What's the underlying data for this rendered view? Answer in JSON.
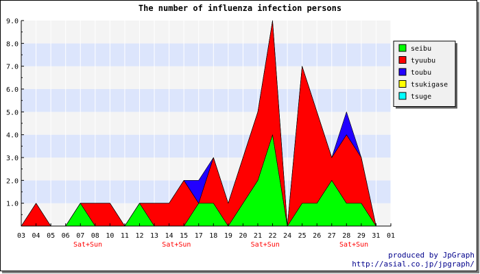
{
  "chart_data": {
    "type": "area",
    "stacked": true,
    "title": "The number of influenza infection persons",
    "x_ticks": [
      "03",
      "04",
      "05",
      "06",
      "07",
      "08",
      "10",
      "11",
      "12",
      "13",
      "14",
      "15",
      "17",
      "18",
      "19",
      "20",
      "21",
      "22",
      "24",
      "25",
      "26",
      "27",
      "28",
      "29",
      "31",
      "01"
    ],
    "weekend_labels": [
      {
        "tick": "07",
        "text": "Sat+Sun"
      },
      {
        "tick": "14",
        "text": "Sat+Sun"
      },
      {
        "tick": "21",
        "text": "Sat+Sun"
      },
      {
        "tick": "28",
        "text": "Sat+Sun"
      }
    ],
    "ylim": [
      0,
      9
    ],
    "y_ticks": [
      "1.0",
      "2.0",
      "3.0",
      "4.0",
      "5.0",
      "6.0",
      "7.0",
      "8.0",
      "9.0"
    ],
    "grid": true,
    "legend_position": "right",
    "series": [
      {
        "name": "seibu",
        "color": "#00ff00",
        "values": [
          0,
          0,
          0,
          0,
          1,
          0,
          0,
          0,
          1,
          0,
          0,
          0,
          1,
          1,
          0,
          1,
          2,
          4,
          0,
          1,
          1,
          2,
          1,
          1,
          0,
          0
        ]
      },
      {
        "name": "tyuubu",
        "color": "#ff0000",
        "values": [
          0,
          1,
          0,
          0,
          0,
          1,
          1,
          0,
          0,
          1,
          1,
          2,
          0,
          2,
          1,
          2,
          3,
          5,
          0,
          6,
          4,
          1,
          3,
          2,
          0,
          0
        ]
      },
      {
        "name": "toubu",
        "color": "#2200ff",
        "values": [
          0,
          0,
          0,
          0,
          0,
          0,
          0,
          0,
          0,
          0,
          0,
          0,
          1,
          0,
          0,
          0,
          0,
          0,
          0,
          0,
          0,
          0,
          1,
          0,
          0,
          0
        ]
      },
      {
        "name": "tsukigase",
        "color": "#ffff00",
        "values": [
          0,
          0,
          0,
          0,
          0,
          0,
          0,
          0,
          0,
          0,
          0,
          0,
          0,
          0,
          0,
          0,
          0,
          0,
          0,
          0,
          0,
          0,
          0,
          0,
          0,
          0
        ]
      },
      {
        "name": "tsuge",
        "color": "#00ffff",
        "values": [
          0,
          0,
          0,
          0,
          0,
          0,
          0,
          0,
          0,
          0,
          0,
          0,
          0,
          0,
          0,
          0,
          0,
          0,
          0,
          0,
          0,
          0,
          0,
          0,
          0,
          0
        ]
      }
    ]
  },
  "credit": {
    "line1": "produced by JpGraph",
    "line2": "http://asial.co.jp/jpgraph/"
  }
}
